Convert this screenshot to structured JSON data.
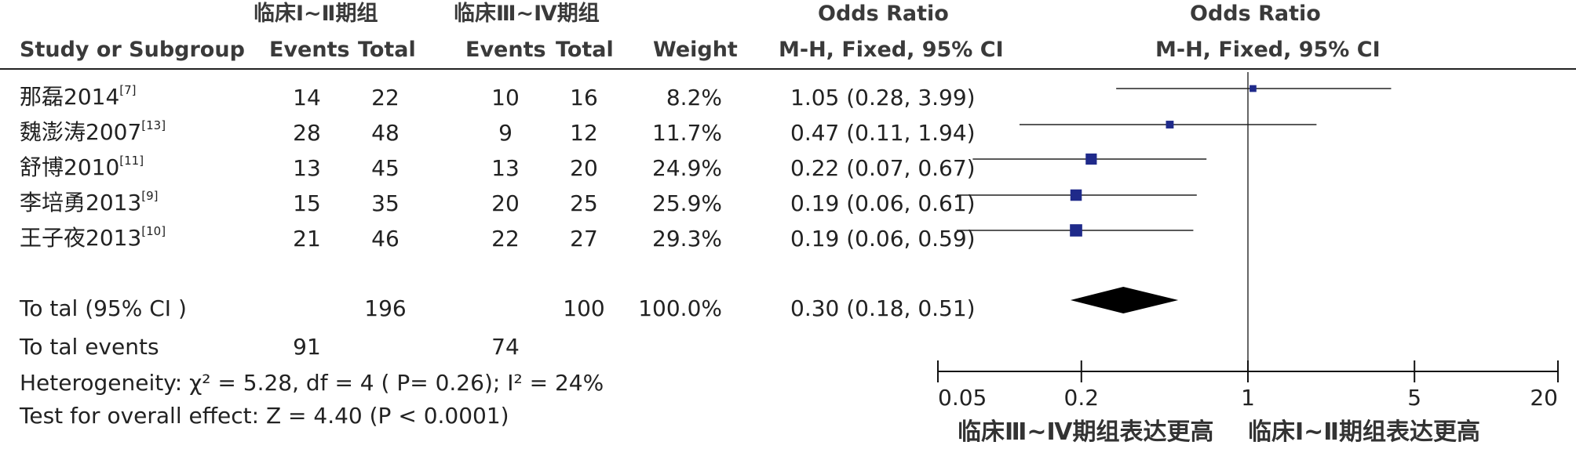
{
  "header": {
    "group1": "临床Ⅰ~Ⅱ期组",
    "group2": "临床Ⅲ~Ⅳ期组",
    "study_col": "Study or Subgroup",
    "events": "Events",
    "total": "Total",
    "weight": "Weight",
    "or_title": "Odds Ratio",
    "or_method": "M-H, Fixed, 95% CI",
    "plot_title": "Odds Ratio",
    "plot_method": "M-H, Fixed, 95% CI"
  },
  "studies": [
    {
      "name": "那磊2014",
      "ref": "[7]",
      "e1": "14",
      "t1": "22",
      "e2": "10",
      "t2": "16",
      "weight": "8.2%",
      "ci_text": "1.05 (0.28, 3.99)"
    },
    {
      "name": "魏澎涛2007",
      "ref": "[13]",
      "e1": "28",
      "t1": "48",
      "e2": "9",
      "t2": "12",
      "weight": "11.7%",
      "ci_text": "0.47 (0.11, 1.94)"
    },
    {
      "name": "舒博2010",
      "ref": "[11]",
      "e1": "13",
      "t1": "45",
      "e2": "13",
      "t2": "20",
      "weight": "24.9%",
      "ci_text": "0.22 (0.07, 0.67)"
    },
    {
      "name": "李培勇2013",
      "ref": "[9]",
      "e1": "15",
      "t1": "35",
      "e2": "20",
      "t2": "25",
      "weight": "25.9%",
      "ci_text": "0.19 (0.06, 0.61)"
    },
    {
      "name": "王子夜2013",
      "ref": "[10]",
      "e1": "21",
      "t1": "46",
      "e2": "22",
      "t2": "27",
      "weight": "29.3%",
      "ci_text": "0.19 (0.06, 0.59)"
    }
  ],
  "total": {
    "label": "To tal (95% CI )",
    "t1": "196",
    "t2": "100",
    "weight": "100.0%",
    "ci_text": "0.30 (0.18, 0.51)"
  },
  "total_events": {
    "label": "To tal events",
    "e1": "91",
    "e2": "74"
  },
  "heterogeneity": "Heterogeneity:  χ² = 5.28, df = 4 (  P= 0.26); I² = 24%",
  "overall_effect": "Test for overall effect: Z = 4.40 (P < 0.0001)",
  "axis": {
    "ticks": [
      "0.05",
      "0.2",
      "1",
      "5",
      "20"
    ],
    "left_label": "临床Ⅲ~Ⅳ期组表达更高",
    "right_label": "临床Ⅰ~Ⅱ期组表达更高"
  },
  "chart_data": {
    "type": "forest",
    "scale": "log",
    "xlim": [
      0.05,
      20
    ],
    "ticks": [
      0.05,
      0.2,
      1,
      5,
      20
    ],
    "reference_line": 1,
    "points": [
      {
        "study": "那磊2014",
        "or": 1.05,
        "lo": 0.28,
        "hi": 3.99,
        "weight": 8.2
      },
      {
        "study": "魏澎涛2007",
        "or": 0.47,
        "lo": 0.11,
        "hi": 1.94,
        "weight": 11.7
      },
      {
        "study": "舒博2010",
        "or": 0.22,
        "lo": 0.07,
        "hi": 0.67,
        "weight": 24.9
      },
      {
        "study": "李培勇2013",
        "or": 0.19,
        "lo": 0.06,
        "hi": 0.61,
        "weight": 25.9
      },
      {
        "study": "王子夜2013",
        "or": 0.19,
        "lo": 0.06,
        "hi": 0.59,
        "weight": 29.3
      }
    ],
    "pooled": {
      "or": 0.3,
      "lo": 0.18,
      "hi": 0.51
    },
    "marker_color": "#1f2a8a",
    "diamond_color": "#000000"
  }
}
